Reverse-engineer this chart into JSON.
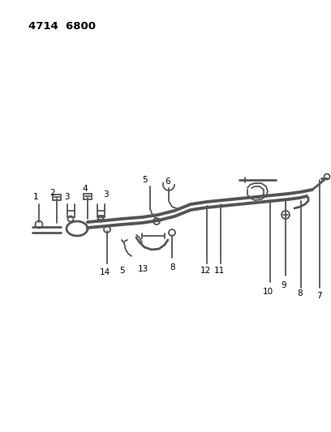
{
  "title": "4714  6800",
  "bg_color": "#ffffff",
  "line_color": "#555555",
  "text_color": "#000000",
  "fig_width": 4.08,
  "fig_height": 5.33,
  "dpi": 100
}
